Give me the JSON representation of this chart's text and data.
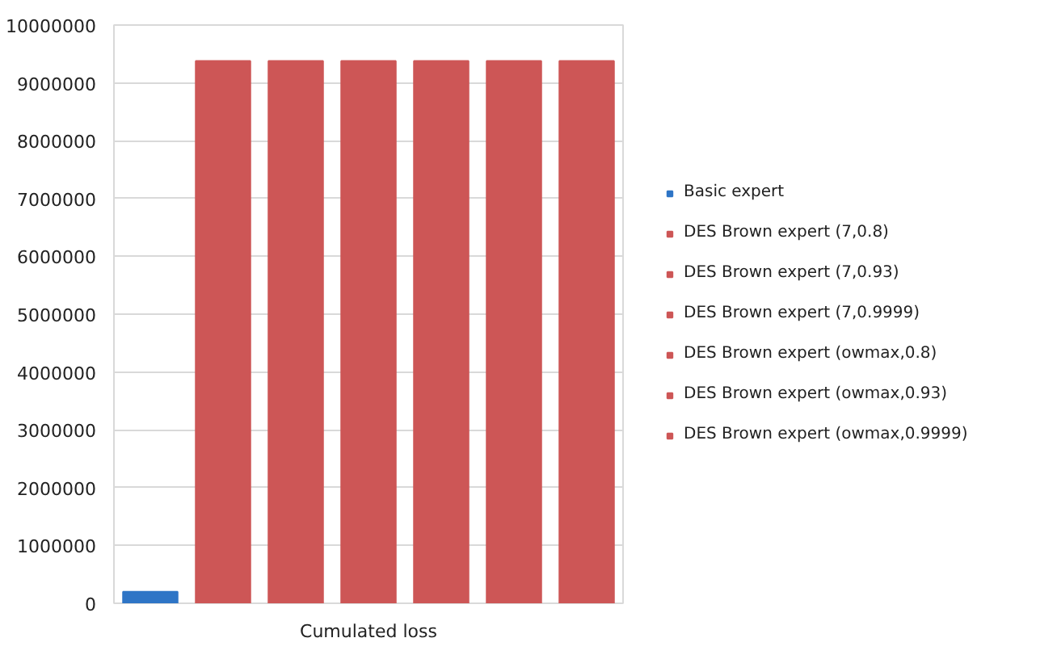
{
  "chart_data": {
    "type": "bar",
    "categories": [
      "Cumulated loss"
    ],
    "series": [
      {
        "name": "Basic expert",
        "color": "#2e75c6",
        "values": [
          200000
        ]
      },
      {
        "name": "DES Brown expert (7,0.8)",
        "color": "#cd5656",
        "values": [
          9380000
        ]
      },
      {
        "name": "DES Brown expert (7,0.93)",
        "color": "#cd5656",
        "values": [
          9380000
        ]
      },
      {
        "name": "DES Brown expert (7,0.9999)",
        "color": "#cd5656",
        "values": [
          9380000
        ]
      },
      {
        "name": "DES Brown expert (owmax,0.8)",
        "color": "#cd5656",
        "values": [
          9380000
        ]
      },
      {
        "name": "DES Brown expert (owmax,0.93)",
        "color": "#cd5656",
        "values": [
          9380000
        ]
      },
      {
        "name": "DES Brown expert (owmax,0.9999)",
        "color": "#cd5656",
        "values": [
          9380000
        ]
      }
    ],
    "ylim": [
      0,
      10000000
    ],
    "yticks": [
      0,
      1000000,
      2000000,
      3000000,
      4000000,
      5000000,
      6000000,
      7000000,
      8000000,
      9000000,
      10000000
    ],
    "grid": "y",
    "legend": "right"
  }
}
